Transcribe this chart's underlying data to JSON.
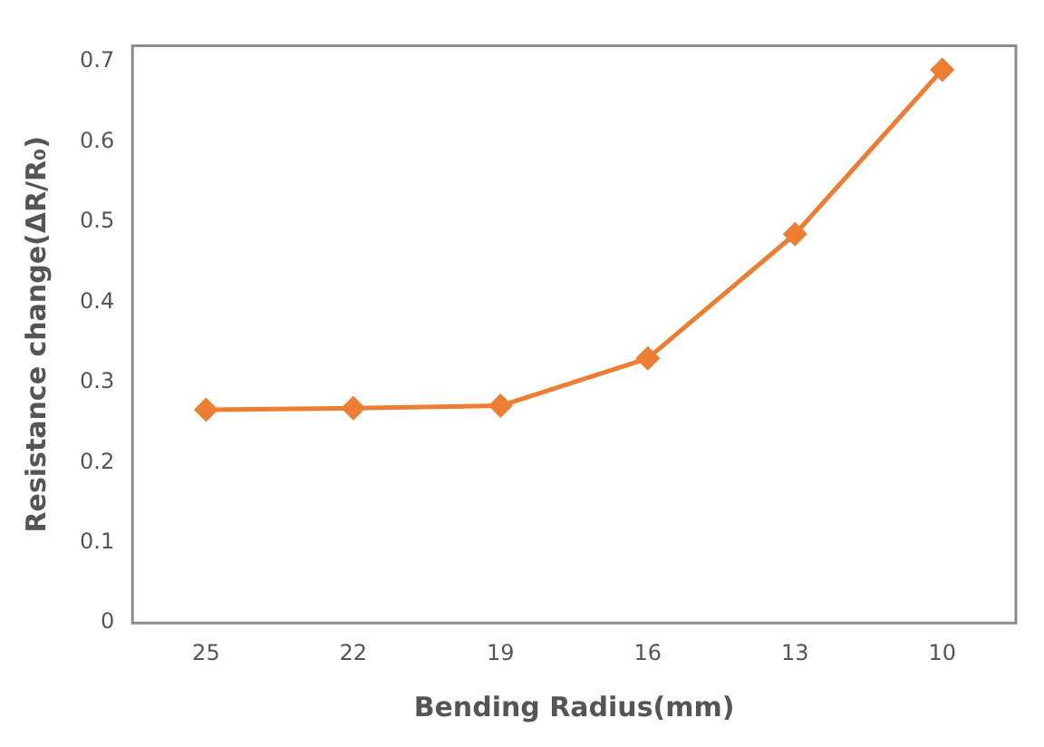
{
  "chart_data": {
    "type": "line",
    "xlabel": "Bending Radius(mm)",
    "ylabel": "Resistance change(ΔR/R₀)",
    "categories": [
      "25",
      "22",
      "19",
      "16",
      "13",
      "10"
    ],
    "series": [
      {
        "color": "#ed7d31",
        "values": [
          0.266,
          0.268,
          0.271,
          0.33,
          0.485,
          0.69
        ]
      }
    ],
    "ylim": [
      0,
      0.72
    ],
    "yticks": [
      0,
      0.1,
      0.2,
      0.3,
      0.4,
      0.5,
      0.6,
      0.7
    ],
    "grid": false,
    "legend": false,
    "marker": "diamond",
    "line_style": "solid"
  }
}
